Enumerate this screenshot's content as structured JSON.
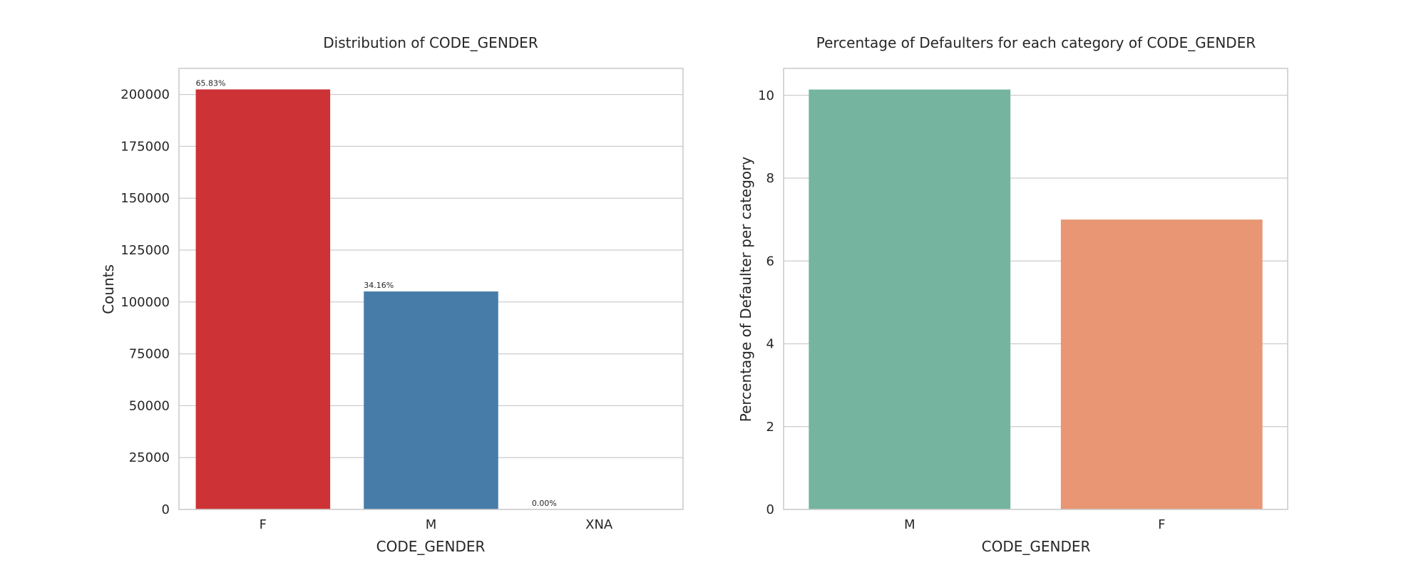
{
  "chart_data": [
    {
      "type": "bar",
      "title": "Distribution of CODE_GENDER",
      "xlabel": "CODE_GENDER",
      "ylabel": "Counts",
      "categories": [
        "F",
        "M",
        "XNA"
      ],
      "values": [
        202448,
        105059,
        4
      ],
      "bar_labels": [
        "65.83%",
        "34.16%",
        "0.00%"
      ],
      "colors": [
        "#cd3336",
        "#477ca8",
        "#59a257"
      ],
      "ylim": [
        0,
        212570
      ],
      "yticks": [
        0,
        25000,
        50000,
        75000,
        100000,
        125000,
        150000,
        175000,
        200000
      ],
      "grid": true
    },
    {
      "type": "bar",
      "title": "Percentage of Defaulters for each category of CODE_GENDER",
      "xlabel": "CODE_GENDER",
      "ylabel": "Percentage of Defaulter per category",
      "categories": [
        "M",
        "F"
      ],
      "values": [
        10.14,
        7.0
      ],
      "colors": [
        "#75b5a0",
        "#e89674"
      ],
      "ylim": [
        0,
        10.65
      ],
      "yticks": [
        0,
        2,
        4,
        6,
        8,
        10
      ],
      "grid": true
    }
  ]
}
